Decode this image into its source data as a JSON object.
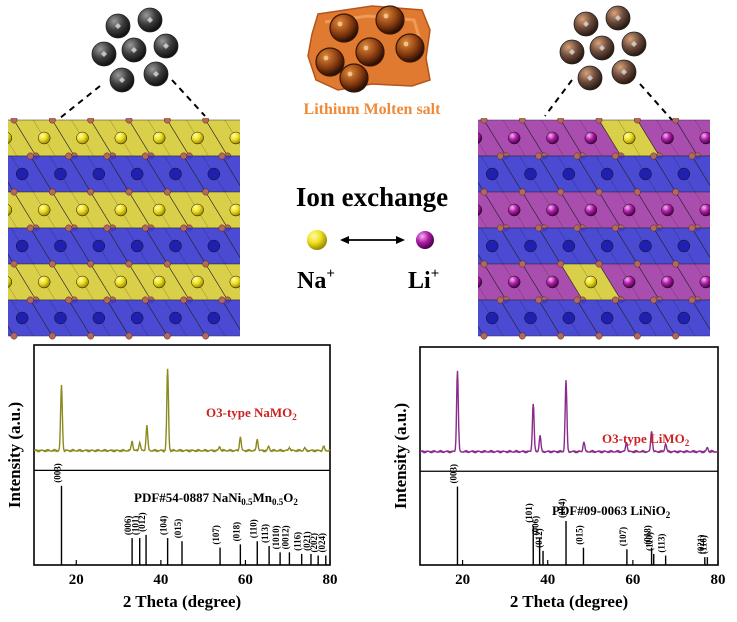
{
  "molten_salt_label": "Lithium Molten salt",
  "ion_exchange_label": "Ion exchange",
  "ions": {
    "left": {
      "symbol": "Na",
      "charge": "+"
    },
    "right": {
      "symbol": "Li",
      "charge": "+"
    }
  },
  "colors": {
    "na_polyhedron": "#d6cc3a",
    "tm_polyhedron": "#3b3bd0",
    "li_polyhedron": "#a23fa8",
    "oxygen": "#b2695a",
    "salt": "#e07a30",
    "left_trace": "#8a8a1e",
    "right_trace": "#8a2a8a",
    "label_red": "#cc2222"
  },
  "chart_data": [
    {
      "type": "line",
      "panel": "left",
      "title": "",
      "annotation": {
        "prefix": "O3-type NaMO",
        "sub": "2"
      },
      "reference": {
        "text_parts": [
          "PDF#54-0887 NaNi",
          "0.5",
          "Mn",
          "0.5",
          "O",
          "2"
        ]
      },
      "xlabel": "2 Theta (degree)",
      "ylabel": "Intensity (a.u.)",
      "xlim": [
        10,
        80
      ],
      "xticks": [
        20,
        40,
        60,
        80
      ],
      "peaks": [
        {
          "x": 16.5,
          "h": 0.8
        },
        {
          "x": 33.2,
          "h": 0.12
        },
        {
          "x": 35.0,
          "h": 0.1
        },
        {
          "x": 36.7,
          "h": 0.31
        },
        {
          "x": 41.6,
          "h": 1.0
        },
        {
          "x": 53.9,
          "h": 0.05
        },
        {
          "x": 58.8,
          "h": 0.17
        },
        {
          "x": 62.8,
          "h": 0.14
        },
        {
          "x": 65.5,
          "h": 0.05
        },
        {
          "x": 70.4,
          "h": 0.04
        },
        {
          "x": 74.0,
          "h": 0.03
        },
        {
          "x": 78.5,
          "h": 0.05
        }
      ],
      "ref_lines": [
        {
          "x": 16.5,
          "h": 1.0,
          "label": "(003)"
        },
        {
          "x": 33.2,
          "h": 0.34,
          "label": "(006)"
        },
        {
          "x": 35.0,
          "h": 0.34,
          "label": "(101)"
        },
        {
          "x": 36.5,
          "h": 0.38,
          "label": "(012)"
        },
        {
          "x": 41.6,
          "h": 0.34,
          "label": "(104)"
        },
        {
          "x": 45.0,
          "h": 0.3,
          "label": "(015)"
        },
        {
          "x": 54.0,
          "h": 0.22,
          "label": "(107)"
        },
        {
          "x": 58.8,
          "h": 0.26,
          "label": "(018)"
        },
        {
          "x": 62.8,
          "h": 0.3,
          "label": "(110)"
        },
        {
          "x": 65.6,
          "h": 0.24,
          "label": "(113)"
        },
        {
          "x": 68.2,
          "h": 0.16,
          "label": "(1010)"
        },
        {
          "x": 70.4,
          "h": 0.16,
          "label": "(0012)"
        },
        {
          "x": 73.3,
          "h": 0.14,
          "label": "(116)"
        },
        {
          "x": 75.5,
          "h": 0.14,
          "label": "(021)"
        },
        {
          "x": 77.2,
          "h": 0.12,
          "label": "(202)"
        },
        {
          "x": 79.0,
          "h": 0.12,
          "label": "(024)"
        }
      ]
    },
    {
      "type": "line",
      "panel": "right",
      "title": "",
      "annotation": {
        "prefix": "O3-type LiMO",
        "sub": "2"
      },
      "reference": {
        "text_parts": [
          "PDF#09-0063 LiNiO",
          "2"
        ]
      },
      "xlabel": "2 Theta (degree)",
      "ylabel": "Intensity (a.u.)",
      "xlim": [
        10,
        80
      ],
      "xticks": [
        20,
        40,
        60,
        80
      ],
      "peaks": [
        {
          "x": 18.8,
          "h": 1.0
        },
        {
          "x": 36.6,
          "h": 0.6
        },
        {
          "x": 38.2,
          "h": 0.2
        },
        {
          "x": 44.3,
          "h": 0.88
        },
        {
          "x": 48.5,
          "h": 0.12
        },
        {
          "x": 58.5,
          "h": 0.12
        },
        {
          "x": 64.4,
          "h": 0.26
        },
        {
          "x": 67.7,
          "h": 0.1
        },
        {
          "x": 77.5,
          "h": 0.05
        }
      ],
      "ref_lines": [
        {
          "x": 18.8,
          "h": 1.0,
          "label": "(003)"
        },
        {
          "x": 36.6,
          "h": 0.5,
          "label": "(101)"
        },
        {
          "x": 38.1,
          "h": 0.34,
          "label": "(006)"
        },
        {
          "x": 38.9,
          "h": 0.18,
          "label": "(012)"
        },
        {
          "x": 44.3,
          "h": 0.56,
          "label": "(104)"
        },
        {
          "x": 48.4,
          "h": 0.22,
          "label": "(015)"
        },
        {
          "x": 58.6,
          "h": 0.2,
          "label": "(107)"
        },
        {
          "x": 64.4,
          "h": 0.22,
          "label": "(018)"
        },
        {
          "x": 64.9,
          "h": 0.14,
          "label": "(110)"
        },
        {
          "x": 67.7,
          "h": 0.12,
          "label": "(113)"
        },
        {
          "x": 76.9,
          "h": 0.1,
          "label": "(021)"
        },
        {
          "x": 77.5,
          "h": 0.1,
          "label": "(116)"
        }
      ]
    }
  ]
}
